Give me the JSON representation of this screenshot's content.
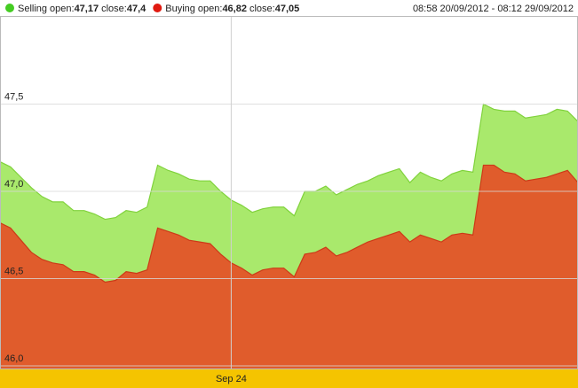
{
  "chart_data": {
    "type": "area",
    "subtitle": "08:58 20/09/2012 - 08:12 29/09/2012",
    "open_label": "open:",
    "close_label": "close:",
    "categories": [
      null,
      null,
      null,
      null,
      null,
      null,
      null,
      null,
      null,
      null,
      null,
      null,
      null,
      null,
      null,
      null,
      null,
      null,
      null,
      null,
      null,
      null,
      "Sep 24",
      null,
      null,
      null,
      null,
      null,
      null,
      null,
      null,
      null,
      null,
      null,
      null,
      null,
      null,
      null,
      null,
      null,
      null,
      null,
      null,
      null,
      null,
      null,
      null,
      null,
      null,
      null,
      null,
      null,
      null,
      null,
      null,
      null
    ],
    "series": [
      {
        "name": "Selling",
        "open": "47,17",
        "close": "47,4",
        "color": "#44cc22",
        "fill": "#a9e96c",
        "stroke": "#80d23c",
        "values": [
          47.17,
          47.14,
          47.08,
          47.02,
          46.97,
          46.94,
          46.94,
          46.89,
          46.89,
          46.87,
          46.84,
          46.85,
          46.89,
          46.88,
          46.91,
          47.15,
          47.12,
          47.1,
          47.07,
          47.06,
          47.06,
          47.0,
          46.95,
          46.92,
          46.88,
          46.9,
          46.91,
          46.91,
          46.86,
          47.0,
          47.0,
          47.03,
          46.98,
          47.01,
          47.04,
          47.06,
          47.09,
          47.11,
          47.13,
          47.05,
          47.11,
          47.08,
          47.06,
          47.1,
          47.12,
          47.11,
          47.5,
          47.47,
          47.46,
          47.46,
          47.42,
          47.43,
          47.44,
          47.47,
          47.46,
          47.4
        ]
      },
      {
        "name": "Buying",
        "open": "46,82",
        "close": "47,05",
        "color": "#e01a10",
        "fill": "#e05c2c",
        "stroke": "#cc3a18",
        "values": [
          46.82,
          46.79,
          46.72,
          46.65,
          46.61,
          46.59,
          46.58,
          46.54,
          46.54,
          46.52,
          46.48,
          46.49,
          46.54,
          46.53,
          46.55,
          46.79,
          46.77,
          46.75,
          46.72,
          46.71,
          46.7,
          46.64,
          46.59,
          46.56,
          46.52,
          46.55,
          46.56,
          46.56,
          46.51,
          46.64,
          46.65,
          46.68,
          46.63,
          46.65,
          46.68,
          46.71,
          46.73,
          46.75,
          46.77,
          46.71,
          46.75,
          46.73,
          46.71,
          46.75,
          46.76,
          46.75,
          47.15,
          47.15,
          47.11,
          47.1,
          47.06,
          47.07,
          47.08,
          47.1,
          47.12,
          47.05
        ]
      }
    ],
    "ylim": [
      45.985,
      48.005
    ],
    "yticks": [
      {
        "value": 46.0,
        "label": "46,0"
      },
      {
        "value": 46.5,
        "label": "46,5"
      },
      {
        "value": 47.0,
        "label": "47,0"
      },
      {
        "value": 47.5,
        "label": "47,5"
      }
    ],
    "grid": true,
    "xaxis_color": "#f5c400"
  }
}
